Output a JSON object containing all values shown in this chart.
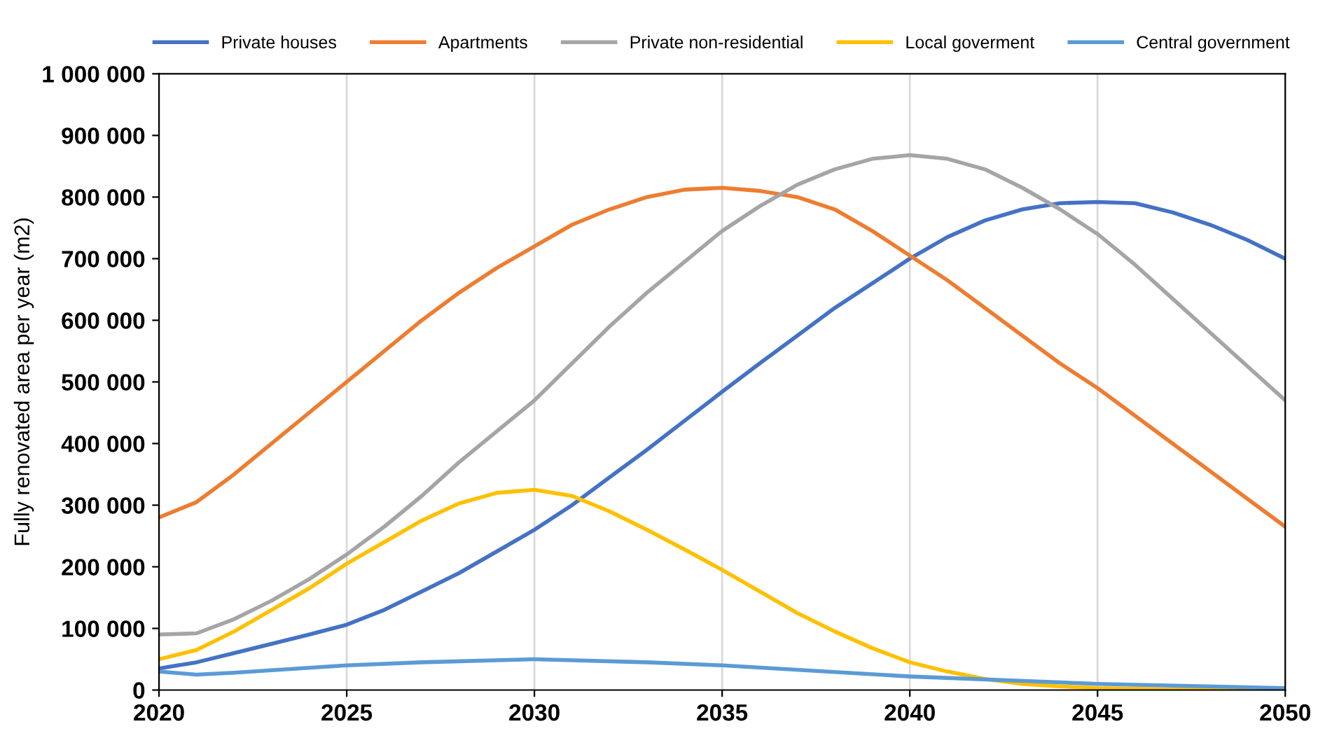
{
  "chart_data": {
    "type": "line",
    "ylabel": "Fully renovated area per year (m2)",
    "x": [
      2020,
      2021,
      2022,
      2023,
      2024,
      2025,
      2026,
      2027,
      2028,
      2029,
      2030,
      2031,
      2032,
      2033,
      2034,
      2035,
      2036,
      2037,
      2038,
      2039,
      2040,
      2041,
      2042,
      2043,
      2044,
      2045,
      2046,
      2047,
      2048,
      2049,
      2050
    ],
    "series": [
      {
        "name": "Private houses",
        "color": "#4472c4",
        "values": [
          35000,
          45000,
          60000,
          75000,
          90000,
          106000,
          130000,
          160000,
          190000,
          225000,
          260000,
          300000,
          345000,
          390000,
          437000,
          484000,
          530000,
          575000,
          620000,
          660000,
          700000,
          735000,
          762000,
          780000,
          790000,
          792000,
          790000,
          775000,
          755000,
          730000,
          700000
        ]
      },
      {
        "name": "Apartments",
        "color": "#ed7d31",
        "values": [
          280000,
          305000,
          350000,
          400000,
          450000,
          500000,
          550000,
          600000,
          645000,
          685000,
          720000,
          755000,
          780000,
          800000,
          812000,
          815000,
          810000,
          800000,
          780000,
          745000,
          705000,
          665000,
          620000,
          575000,
          530000,
          490000,
          445000,
          400000,
          355000,
          310000,
          265000
        ]
      },
      {
        "name": "Private non-residential",
        "color": "#a5a5a5",
        "values": [
          90000,
          92000,
          115000,
          145000,
          180000,
          220000,
          265000,
          315000,
          370000,
          420000,
          470000,
          530000,
          590000,
          645000,
          695000,
          745000,
          785000,
          820000,
          845000,
          862000,
          868000,
          862000,
          845000,
          815000,
          780000,
          740000,
          690000,
          635000,
          580000,
          525000,
          470000
        ]
      },
      {
        "name": "Local goverment",
        "color": "#ffc000",
        "values": [
          50000,
          65000,
          95000,
          130000,
          165000,
          205000,
          240000,
          275000,
          303000,
          320000,
          325000,
          315000,
          290000,
          260000,
          228000,
          195000,
          160000,
          125000,
          95000,
          68000,
          45000,
          30000,
          18000,
          10000,
          6000,
          3000,
          2000,
          1000,
          1000,
          0,
          0
        ]
      },
      {
        "name": "Central government",
        "color": "#5b9bd5",
        "x": [
          2020,
          2021,
          2022,
          2023,
          2025,
          2027,
          2030,
          2033,
          2035,
          2040,
          2045,
          2050
        ],
        "values": [
          30000,
          25000,
          28000,
          32000,
          40000,
          45000,
          50000,
          45000,
          40000,
          22000,
          10000,
          3000
        ]
      }
    ],
    "xlim": [
      2020,
      2050
    ],
    "xticks": [
      2020,
      2025,
      2030,
      2035,
      2040,
      2045,
      2050
    ],
    "ylim": [
      0,
      1000000
    ],
    "yticks": [
      0,
      {
        "value": 100000,
        "label": "100 000"
      },
      {
        "value": 200000,
        "label": "200 000"
      },
      {
        "value": 300000,
        "label": "300 000"
      },
      {
        "value": 400000,
        "label": "400 000"
      },
      {
        "value": 500000,
        "label": "500 000"
      },
      {
        "value": 600000,
        "label": "600 000"
      },
      {
        "value": 700000,
        "label": "700 000"
      },
      {
        "value": 800000,
        "label": "800 000"
      },
      {
        "value": 900000,
        "label": "900 000"
      },
      {
        "value": 1000000,
        "label": "1 000 000"
      }
    ],
    "grid": "x",
    "legend": "top",
    "marker": "none",
    "line_style": "solid"
  }
}
